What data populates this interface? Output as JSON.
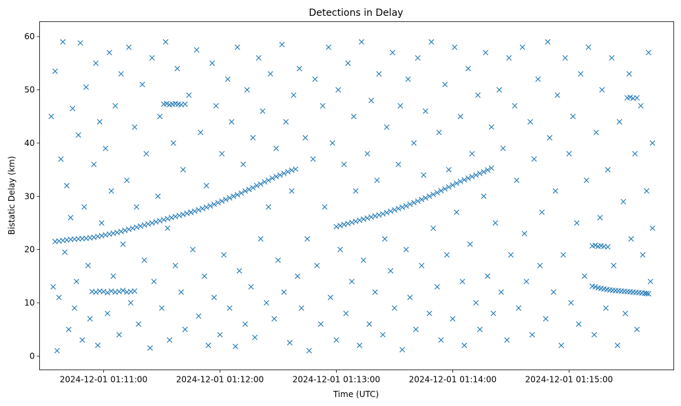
{
  "chart_data": {
    "type": "scatter",
    "title": "Detections in Delay",
    "xlabel": "Time (UTC)",
    "ylabel": "Bistatic Delay (km)",
    "x_units": "seconds after 2024-12-01 01:10:00 UTC",
    "xlim": [
      27,
      354
    ],
    "ylim": [
      -2.6,
      62.8
    ],
    "marker": "x",
    "color": "#1f77b4",
    "grid": false,
    "xticks": [
      {
        "value": 60,
        "label": "2024-12-01 01:11:00"
      },
      {
        "value": 120,
        "label": "2024-12-01 01:12:00"
      },
      {
        "value": 180,
        "label": "2024-12-01 01:13:00"
      },
      {
        "value": 240,
        "label": "2024-12-01 01:14:00"
      },
      {
        "value": 300,
        "label": "2024-12-01 01:15:00"
      }
    ],
    "yticks": [
      {
        "value": 0,
        "label": "0"
      },
      {
        "value": 10,
        "label": "10"
      },
      {
        "value": 20,
        "label": "20"
      },
      {
        "value": 30,
        "label": "30"
      },
      {
        "value": 40,
        "label": "40"
      },
      {
        "value": 50,
        "label": "50"
      },
      {
        "value": 60,
        "label": "60"
      }
    ],
    "tracks": [
      [
        [
          35,
          21.5
        ],
        [
          37,
          21.6
        ],
        [
          39,
          21.7
        ],
        [
          41,
          21.8
        ],
        [
          43,
          21.9
        ],
        [
          45,
          21.95
        ],
        [
          47,
          22.0
        ],
        [
          49,
          22.05
        ],
        [
          51,
          22.1
        ],
        [
          53,
          22.2
        ],
        [
          55,
          22.3
        ],
        [
          57,
          22.45
        ],
        [
          59,
          22.6
        ],
        [
          61,
          22.75
        ],
        [
          63,
          22.9
        ],
        [
          65,
          23.05
        ],
        [
          67,
          23.2
        ],
        [
          69,
          23.4
        ],
        [
          71,
          23.6
        ],
        [
          73,
          23.8
        ],
        [
          75,
          24.0
        ],
        [
          77,
          24.2
        ],
        [
          79,
          24.4
        ],
        [
          81,
          24.6
        ],
        [
          83,
          24.8
        ],
        [
          85,
          25.0
        ],
        [
          87,
          25.2
        ],
        [
          89,
          25.4
        ],
        [
          91,
          25.6
        ],
        [
          93,
          25.8
        ],
        [
          95,
          26.0
        ],
        [
          97,
          26.2
        ],
        [
          99,
          26.4
        ],
        [
          101,
          26.6
        ],
        [
          103,
          26.8
        ],
        [
          105,
          27.0
        ],
        [
          107,
          27.2
        ],
        [
          109,
          27.45
        ],
        [
          111,
          27.7
        ],
        [
          113,
          27.95
        ],
        [
          115,
          28.2
        ],
        [
          117,
          28.5
        ],
        [
          119,
          28.8
        ],
        [
          121,
          29.1
        ],
        [
          123,
          29.4
        ],
        [
          125,
          29.7
        ],
        [
          127,
          30.0
        ],
        [
          129,
          30.3
        ],
        [
          131,
          30.6
        ],
        [
          133,
          31.0
        ],
        [
          135,
          31.3
        ],
        [
          137,
          31.6
        ],
        [
          139,
          32.0
        ],
        [
          141,
          32.3
        ],
        [
          143,
          32.7
        ],
        [
          145,
          33.0
        ],
        [
          147,
          33.4
        ],
        [
          149,
          33.7
        ],
        [
          151,
          34.0
        ],
        [
          153,
          34.3
        ],
        [
          155,
          34.6
        ],
        [
          157,
          34.9
        ],
        [
          159,
          35.1
        ]
      ],
      [
        [
          180,
          24.3
        ],
        [
          182,
          24.5
        ],
        [
          184,
          24.7
        ],
        [
          186,
          24.9
        ],
        [
          188,
          25.1
        ],
        [
          190,
          25.3
        ],
        [
          192,
          25.5
        ],
        [
          194,
          25.7
        ],
        [
          196,
          25.9
        ],
        [
          198,
          26.1
        ],
        [
          200,
          26.3
        ],
        [
          202,
          26.5
        ],
        [
          204,
          26.7
        ],
        [
          206,
          26.95
        ],
        [
          208,
          27.2
        ],
        [
          210,
          27.45
        ],
        [
          212,
          27.7
        ],
        [
          214,
          27.95
        ],
        [
          216,
          28.2
        ],
        [
          218,
          28.5
        ],
        [
          220,
          28.8
        ],
        [
          222,
          29.1
        ],
        [
          224,
          29.4
        ],
        [
          226,
          29.7
        ],
        [
          228,
          30.0
        ],
        [
          230,
          30.35
        ],
        [
          232,
          30.7
        ],
        [
          234,
          31.05
        ],
        [
          236,
          31.4
        ],
        [
          238,
          31.75
        ],
        [
          240,
          32.1
        ],
        [
          242,
          32.45
        ],
        [
          244,
          32.8
        ],
        [
          246,
          33.1
        ],
        [
          248,
          33.4
        ],
        [
          250,
          33.7
        ],
        [
          252,
          34.0
        ],
        [
          254,
          34.3
        ],
        [
          256,
          34.6
        ],
        [
          258,
          34.95
        ],
        [
          260,
          35.3
        ]
      ],
      [
        [
          312,
          13.1
        ],
        [
          313.5,
          13.0
        ],
        [
          315,
          12.8
        ],
        [
          316.5,
          12.7
        ],
        [
          318,
          12.6
        ],
        [
          319.5,
          12.5
        ],
        [
          321,
          12.4
        ],
        [
          322.5,
          12.35
        ],
        [
          324,
          12.3
        ],
        [
          325.5,
          12.25
        ],
        [
          327,
          12.2
        ],
        [
          328.5,
          12.15
        ],
        [
          330,
          12.1
        ],
        [
          331.5,
          12.05
        ],
        [
          333,
          12.0
        ],
        [
          334.5,
          11.95
        ],
        [
          336,
          11.9
        ],
        [
          337.5,
          11.85
        ],
        [
          339,
          11.8
        ],
        [
          340,
          11.75
        ],
        [
          341,
          11.7
        ]
      ],
      [
        [
          54,
          12.1
        ],
        [
          56,
          12.0
        ],
        [
          58,
          12.2
        ],
        [
          60,
          12.1
        ],
        [
          62,
          11.9
        ],
        [
          64,
          12.2
        ],
        [
          66,
          12.0
        ],
        [
          68,
          12.1
        ],
        [
          70,
          12.3
        ],
        [
          72,
          12.0
        ],
        [
          74,
          12.1
        ],
        [
          76,
          12.2
        ]
      ],
      [
        [
          91,
          47.3
        ],
        [
          92.5,
          47.4
        ],
        [
          94,
          47.2
        ],
        [
          95.5,
          47.3
        ],
        [
          97,
          47.4
        ],
        [
          98.5,
          47.3
        ],
        [
          100,
          47.2
        ],
        [
          102,
          47.3
        ]
      ],
      [
        [
          312,
          20.7
        ],
        [
          313.5,
          20.8
        ],
        [
          315,
          20.6
        ],
        [
          316.5,
          20.7
        ],
        [
          318,
          20.6
        ],
        [
          320,
          20.5
        ]
      ],
      [
        [
          330,
          48.5
        ],
        [
          331.5,
          48.6
        ],
        [
          333,
          48.4
        ],
        [
          335,
          48.5
        ]
      ]
    ],
    "points": [
      [
        33,
        45
      ],
      [
        34,
        13
      ],
      [
        35,
        53.5
      ],
      [
        36,
        1
      ],
      [
        37,
        11
      ],
      [
        38,
        37
      ],
      [
        39,
        59
      ],
      [
        40,
        19.5
      ],
      [
        41,
        32
      ],
      [
        42,
        5
      ],
      [
        43,
        26
      ],
      [
        44,
        46.5
      ],
      [
        45,
        9
      ],
      [
        46,
        14
      ],
      [
        47,
        41.5
      ],
      [
        48,
        58.8
      ],
      [
        49,
        3
      ],
      [
        50,
        28
      ],
      [
        51,
        50.5
      ],
      [
        52,
        17
      ],
      [
        53,
        7
      ],
      [
        55,
        36
      ],
      [
        56,
        55
      ],
      [
        57,
        2
      ],
      [
        58,
        44
      ],
      [
        59,
        25
      ],
      [
        61,
        39
      ],
      [
        62,
        8
      ],
      [
        63,
        57
      ],
      [
        64,
        31
      ],
      [
        65,
        15
      ],
      [
        66,
        47
      ],
      [
        68,
        4
      ],
      [
        69,
        53
      ],
      [
        70,
        21
      ],
      [
        72,
        33
      ],
      [
        73,
        58
      ],
      [
        74,
        10
      ],
      [
        76,
        43
      ],
      [
        77,
        28
      ],
      [
        78,
        6
      ],
      [
        80,
        51
      ],
      [
        81,
        18
      ],
      [
        82,
        38
      ],
      [
        84,
        1.5
      ],
      [
        85,
        56
      ],
      [
        86,
        14
      ],
      [
        88,
        30
      ],
      [
        89,
        45
      ],
      [
        90,
        9
      ],
      [
        92,
        59
      ],
      [
        93,
        24
      ],
      [
        94,
        3
      ],
      [
        96,
        40
      ],
      [
        97,
        17
      ],
      [
        98,
        54
      ],
      [
        100,
        12
      ],
      [
        101,
        35
      ],
      [
        102,
        5
      ],
      [
        104,
        49
      ],
      [
        105,
        27
      ],
      [
        106,
        20
      ],
      [
        108,
        57.5
      ],
      [
        109,
        7.5
      ],
      [
        110,
        42
      ],
      [
        112,
        15
      ],
      [
        113,
        32
      ],
      [
        114,
        2
      ],
      [
        116,
        55
      ],
      [
        117,
        11
      ],
      [
        118,
        47
      ],
      [
        120,
        4
      ],
      [
        121,
        38
      ],
      [
        122,
        19
      ],
      [
        124,
        52
      ],
      [
        125,
        9
      ],
      [
        126,
        44
      ],
      [
        128,
        1.8
      ],
      [
        129,
        58
      ],
      [
        130,
        16
      ],
      [
        132,
        36
      ],
      [
        133,
        6
      ],
      [
        134,
        50
      ],
      [
        136,
        13
      ],
      [
        137,
        41
      ],
      [
        138,
        3.5
      ],
      [
        140,
        56
      ],
      [
        141,
        22
      ],
      [
        142,
        46
      ],
      [
        144,
        10
      ],
      [
        145,
        28
      ],
      [
        146,
        53
      ],
      [
        148,
        7
      ],
      [
        149,
        39
      ],
      [
        150,
        18
      ],
      [
        152,
        58.5
      ],
      [
        153,
        12
      ],
      [
        154,
        44
      ],
      [
        156,
        2.5
      ],
      [
        157,
        31
      ],
      [
        158,
        49
      ],
      [
        160,
        15
      ],
      [
        161,
        54
      ],
      [
        162,
        9
      ],
      [
        164,
        41
      ],
      [
        165,
        22
      ],
      [
        166,
        1
      ],
      [
        168,
        37
      ],
      [
        169,
        52
      ],
      [
        170,
        17
      ],
      [
        172,
        6
      ],
      [
        173,
        47
      ],
      [
        174,
        28
      ],
      [
        176,
        58
      ],
      [
        177,
        11
      ],
      [
        178,
        40
      ],
      [
        180,
        3
      ],
      [
        181,
        50
      ],
      [
        182,
        20
      ],
      [
        184,
        36
      ],
      [
        185,
        8
      ],
      [
        186,
        55
      ],
      [
        188,
        14
      ],
      [
        189,
        45
      ],
      [
        190,
        31
      ],
      [
        192,
        2
      ],
      [
        193,
        59
      ],
      [
        194,
        18
      ],
      [
        196,
        38
      ],
      [
        197,
        6
      ],
      [
        198,
        48
      ],
      [
        200,
        12
      ],
      [
        201,
        33
      ],
      [
        202,
        53
      ],
      [
        204,
        4
      ],
      [
        205,
        22
      ],
      [
        206,
        43
      ],
      [
        208,
        16
      ],
      [
        209,
        57
      ],
      [
        210,
        9
      ],
      [
        212,
        36
      ],
      [
        213,
        47
      ],
      [
        214,
        1.2
      ],
      [
        216,
        20
      ],
      [
        217,
        52
      ],
      [
        218,
        11
      ],
      [
        220,
        40
      ],
      [
        221,
        5
      ],
      [
        222,
        56
      ],
      [
        224,
        17
      ],
      [
        225,
        34
      ],
      [
        226,
        46
      ],
      [
        228,
        8
      ],
      [
        229,
        59
      ],
      [
        230,
        24
      ],
      [
        232,
        13
      ],
      [
        233,
        42
      ],
      [
        234,
        3
      ],
      [
        236,
        51
      ],
      [
        237,
        19
      ],
      [
        238,
        35
      ],
      [
        240,
        7
      ],
      [
        241,
        58
      ],
      [
        242,
        27
      ],
      [
        244,
        45
      ],
      [
        245,
        14
      ],
      [
        246,
        2
      ],
      [
        248,
        54
      ],
      [
        249,
        21
      ],
      [
        250,
        38
      ],
      [
        252,
        10
      ],
      [
        253,
        49
      ],
      [
        254,
        5
      ],
      [
        256,
        30
      ],
      [
        257,
        57
      ],
      [
        258,
        15
      ],
      [
        260,
        43
      ],
      [
        261,
        8
      ],
      [
        262,
        25
      ],
      [
        264,
        50
      ],
      [
        265,
        12
      ],
      [
        266,
        39
      ],
      [
        268,
        3
      ],
      [
        269,
        56
      ],
      [
        270,
        19
      ],
      [
        272,
        47
      ],
      [
        273,
        33
      ],
      [
        274,
        9
      ],
      [
        276,
        58
      ],
      [
        277,
        23
      ],
      [
        278,
        14
      ],
      [
        280,
        44
      ],
      [
        281,
        4
      ],
      [
        282,
        37
      ],
      [
        284,
        52
      ],
      [
        285,
        17
      ],
      [
        286,
        27
      ],
      [
        288,
        7
      ],
      [
        289,
        59
      ],
      [
        290,
        41
      ],
      [
        292,
        12
      ],
      [
        293,
        31
      ],
      [
        294,
        49
      ],
      [
        296,
        2
      ],
      [
        297,
        19
      ],
      [
        298,
        56
      ],
      [
        300,
        38
      ],
      [
        301,
        10
      ],
      [
        302,
        45
      ],
      [
        304,
        25
      ],
      [
        305,
        6
      ],
      [
        306,
        53
      ],
      [
        308,
        15
      ],
      [
        309,
        33
      ],
      [
        310,
        58
      ],
      [
        313,
        4
      ],
      [
        314,
        42
      ],
      [
        316,
        26
      ],
      [
        317,
        50
      ],
      [
        319,
        9
      ],
      [
        320,
        35
      ],
      [
        322,
        56
      ],
      [
        323,
        17
      ],
      [
        325,
        2
      ],
      [
        326,
        44
      ],
      [
        328,
        29
      ],
      [
        329,
        8
      ],
      [
        331,
        53
      ],
      [
        332,
        22
      ],
      [
        334,
        38
      ],
      [
        335,
        5
      ],
      [
        337,
        47
      ],
      [
        338,
        19
      ],
      [
        340,
        31
      ],
      [
        341,
        57
      ],
      [
        342,
        14
      ],
      [
        343,
        40
      ],
      [
        343,
        24
      ]
    ]
  }
}
